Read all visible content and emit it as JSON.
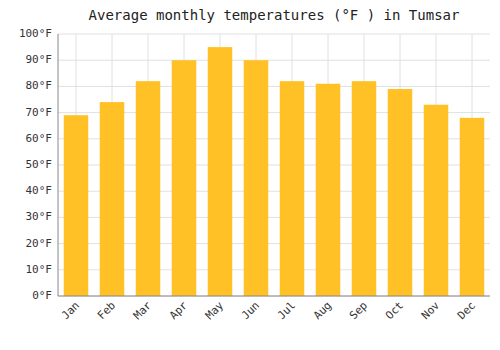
{
  "chart_data": {
    "type": "bar",
    "title": "Average monthly temperatures (°F ) in Tumsar",
    "categories": [
      "Jan",
      "Feb",
      "Mar",
      "Apr",
      "May",
      "Jun",
      "Jul",
      "Aug",
      "Sep",
      "Oct",
      "Nov",
      "Dec"
    ],
    "values": [
      69,
      74,
      82,
      90,
      95,
      90,
      82,
      81,
      82,
      79,
      73,
      68
    ],
    "color": "#FFC125",
    "ylim": [
      0,
      100
    ],
    "yticks": [
      {
        "value": 0,
        "label": "0°F"
      },
      {
        "value": 10,
        "label": "10°F"
      },
      {
        "value": 20,
        "label": "20°F"
      },
      {
        "value": 30,
        "label": "30°F"
      },
      {
        "value": 40,
        "label": "40°F"
      },
      {
        "value": 50,
        "label": "50°F"
      },
      {
        "value": 60,
        "label": "60°F"
      },
      {
        "value": 70,
        "label": "70°F"
      },
      {
        "value": 80,
        "label": "80°F"
      },
      {
        "value": 90,
        "label": "90°F"
      },
      {
        "value": 100,
        "label": "100°F"
      }
    ],
    "grid": true
  }
}
